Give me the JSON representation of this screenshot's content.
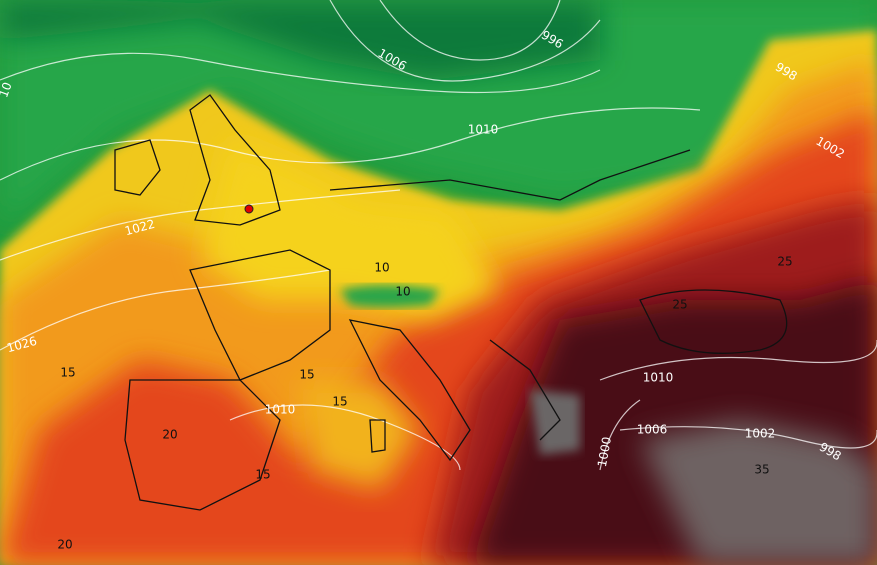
{
  "isobar_labels": [
    "10",
    "1006",
    "996",
    "998",
    "1010",
    "1002",
    "1022",
    "1026",
    "1010",
    "1010",
    "1006",
    "1002",
    "1000",
    "998"
  ],
  "temperature_labels": [
    "10",
    "10",
    "25",
    "25",
    "15",
    "15",
    "15",
    "20",
    "15",
    "35",
    "20"
  ]
}
